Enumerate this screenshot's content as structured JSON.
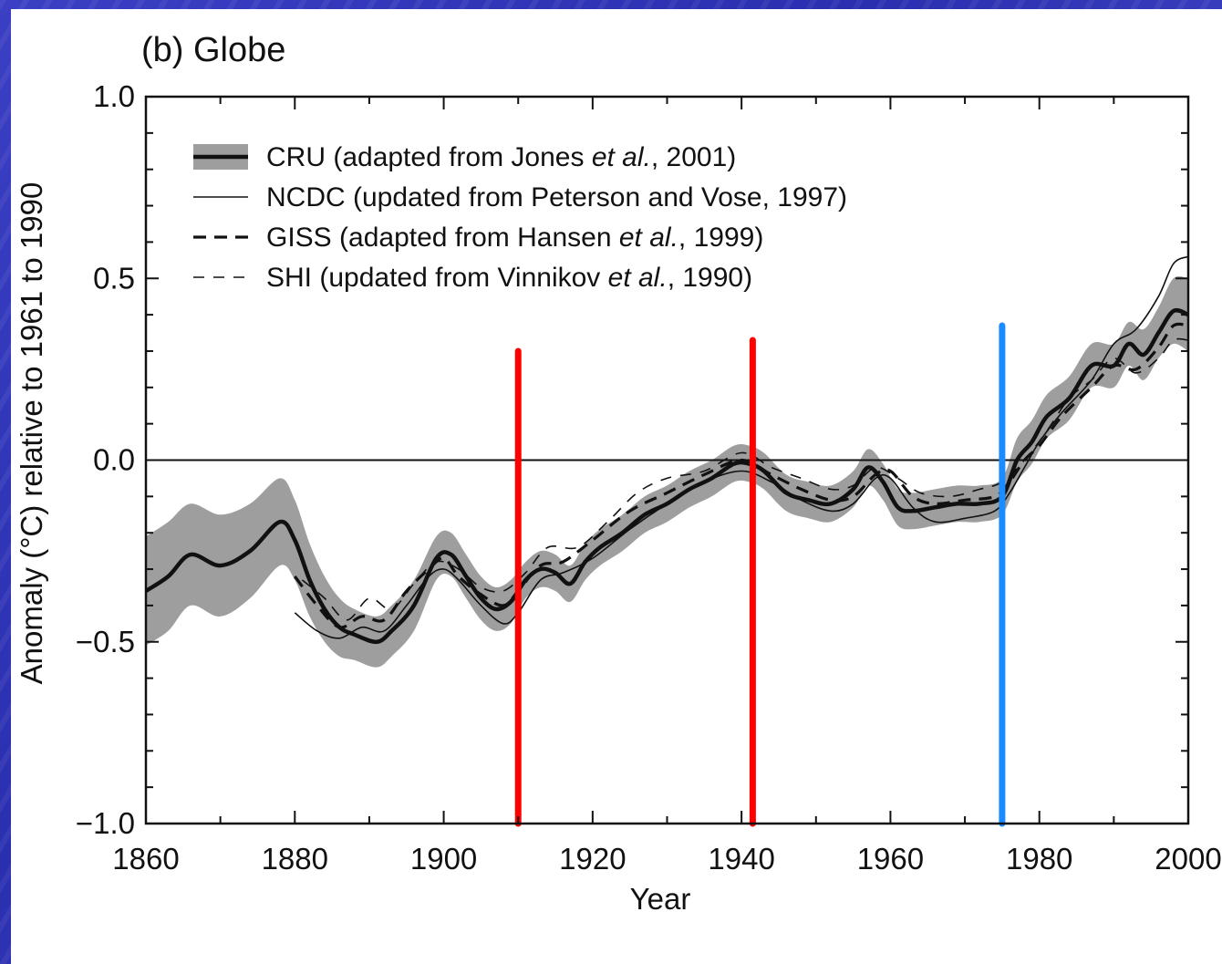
{
  "chart_data": {
    "type": "line",
    "title": "(b)  Globe",
    "xlabel": "Year",
    "ylabel": "Anomaly (°C) relative to 1961 to 1990",
    "xlim": [
      1860,
      2000
    ],
    "ylim": [
      -1.0,
      1.0
    ],
    "x_ticks": [
      "1860",
      "1880",
      "1900",
      "1920",
      "1940",
      "1960",
      "1980",
      "2000"
    ],
    "y_ticks": [
      "1.0",
      "0.5",
      "0.0",
      "−0.5",
      "−1.0"
    ],
    "reference_line_y": 0.0,
    "legend": [
      {
        "pre": "CRU (adapted from Jones ",
        "ital": "et al.",
        "post": ", 2001)"
      },
      {
        "pre": "NCDC (updated from Peterson and Vose, 1997)",
        "ital": "",
        "post": ""
      },
      {
        "pre": "GISS (adapted from Hansen ",
        "ital": "et al.",
        "post": ", 1999)"
      },
      {
        "pre": "SHI (updated from Vinnikov ",
        "ital": "et al.",
        "post": ", 1990)"
      }
    ],
    "series": [
      {
        "name": "CRU",
        "style": "band",
        "x": [
          1860,
          1863,
          1866,
          1870,
          1874,
          1878,
          1880,
          1882,
          1884,
          1886,
          1888,
          1891,
          1893,
          1896,
          1899,
          1901,
          1903,
          1905,
          1907,
          1909,
          1911,
          1913,
          1915,
          1917,
          1919,
          1921,
          1924,
          1927,
          1930,
          1933,
          1936,
          1939,
          1941,
          1943,
          1946,
          1949,
          1952,
          1955,
          1957,
          1959,
          1961,
          1963,
          1966,
          1969,
          1972,
          1975,
          1977,
          1979,
          1981,
          1984,
          1987,
          1990,
          1992,
          1994,
          1996,
          1998,
          2000
        ],
        "values": [
          -0.36,
          -0.32,
          -0.26,
          -0.29,
          -0.25,
          -0.17,
          -0.22,
          -0.33,
          -0.41,
          -0.46,
          -0.48,
          -0.5,
          -0.47,
          -0.4,
          -0.27,
          -0.26,
          -0.32,
          -0.38,
          -0.41,
          -0.39,
          -0.33,
          -0.3,
          -0.31,
          -0.34,
          -0.28,
          -0.24,
          -0.2,
          -0.15,
          -0.12,
          -0.08,
          -0.05,
          -0.01,
          -0.01,
          -0.03,
          -0.09,
          -0.11,
          -0.12,
          -0.08,
          -0.02,
          -0.06,
          -0.13,
          -0.14,
          -0.13,
          -0.12,
          -0.12,
          -0.1,
          0.0,
          0.05,
          0.12,
          0.17,
          0.26,
          0.26,
          0.32,
          0.29,
          0.35,
          0.41,
          0.4
        ],
        "uncertainty": [
          0.15,
          0.15,
          0.14,
          0.14,
          0.13,
          0.12,
          0.11,
          0.1,
          0.09,
          0.08,
          0.07,
          0.07,
          0.07,
          0.07,
          0.06,
          0.06,
          0.06,
          0.06,
          0.06,
          0.06,
          0.05,
          0.05,
          0.05,
          0.05,
          0.05,
          0.05,
          0.05,
          0.05,
          0.05,
          0.05,
          0.05,
          0.05,
          0.05,
          0.05,
          0.05,
          0.05,
          0.05,
          0.05,
          0.05,
          0.05,
          0.05,
          0.05,
          0.05,
          0.05,
          0.05,
          0.05,
          0.06,
          0.06,
          0.06,
          0.06,
          0.06,
          0.06,
          0.06,
          0.07,
          0.07,
          0.09,
          0.1
        ]
      },
      {
        "name": "NCDC",
        "style": "thin-solid",
        "x": [
          1880,
          1883,
          1886,
          1889,
          1892,
          1895,
          1898,
          1900,
          1902,
          1905,
          1908,
          1910,
          1913,
          1916,
          1920,
          1925,
          1930,
          1935,
          1940,
          1944,
          1948,
          1952,
          1955,
          1958,
          1960,
          1963,
          1966,
          1970,
          1974,
          1976,
          1978,
          1980,
          1983,
          1987,
          1990,
          1993,
          1996,
          1998,
          2000
        ],
        "values": [
          -0.42,
          -0.47,
          -0.49,
          -0.46,
          -0.47,
          -0.4,
          -0.32,
          -0.3,
          -0.33,
          -0.4,
          -0.45,
          -0.42,
          -0.33,
          -0.31,
          -0.27,
          -0.19,
          -0.12,
          -0.06,
          -0.03,
          -0.06,
          -0.11,
          -0.14,
          -0.12,
          -0.05,
          -0.05,
          -0.13,
          -0.17,
          -0.16,
          -0.14,
          -0.09,
          -0.02,
          0.05,
          0.13,
          0.22,
          0.32,
          0.36,
          0.45,
          0.54,
          0.56
        ]
      },
      {
        "name": "GISS",
        "style": "thick-dash",
        "x": [
          1880,
          1883,
          1886,
          1889,
          1892,
          1895,
          1898,
          1900,
          1902,
          1905,
          1908,
          1910,
          1913,
          1916,
          1920,
          1925,
          1930,
          1935,
          1940,
          1944,
          1948,
          1952,
          1955,
          1958,
          1960,
          1963,
          1966,
          1970,
          1974,
          1976,
          1978,
          1980,
          1983,
          1987,
          1990,
          1993,
          1996,
          1998,
          2000
        ],
        "values": [
          -0.32,
          -0.4,
          -0.46,
          -0.43,
          -0.44,
          -0.36,
          -0.3,
          -0.27,
          -0.32,
          -0.37,
          -0.4,
          -0.36,
          -0.29,
          -0.28,
          -0.22,
          -0.14,
          -0.09,
          -0.04,
          0.0,
          -0.04,
          -0.08,
          -0.11,
          -0.1,
          -0.04,
          -0.03,
          -0.1,
          -0.12,
          -0.11,
          -0.1,
          -0.06,
          0.0,
          0.04,
          0.12,
          0.2,
          0.26,
          0.25,
          0.31,
          0.37,
          0.37
        ]
      },
      {
        "name": "SHI",
        "style": "thin-dash",
        "x": [
          1881,
          1884,
          1887,
          1890,
          1893,
          1896,
          1899,
          1902,
          1905,
          1908,
          1911,
          1914,
          1918,
          1922,
          1926,
          1930,
          1935,
          1940,
          1944,
          1948,
          1952,
          1955,
          1958,
          1961,
          1964,
          1968,
          1972,
          1975,
          1978,
          1981,
          1984,
          1987,
          1990,
          1993,
          1996,
          1998,
          2000
        ],
        "values": [
          -0.33,
          -0.38,
          -0.44,
          -0.38,
          -0.41,
          -0.34,
          -0.28,
          -0.3,
          -0.35,
          -0.36,
          -0.31,
          -0.24,
          -0.24,
          -0.17,
          -0.09,
          -0.05,
          -0.03,
          0.02,
          -0.02,
          -0.05,
          -0.08,
          -0.07,
          -0.02,
          -0.05,
          -0.09,
          -0.1,
          -0.08,
          -0.06,
          0.0,
          0.08,
          0.17,
          0.22,
          0.28,
          0.24,
          0.28,
          0.33,
          0.33
        ]
      }
    ],
    "annotations": [
      {
        "type": "vline",
        "x": 1910,
        "y_top": 0.3,
        "color": "#ff0000"
      },
      {
        "type": "vline",
        "x": 1941.5,
        "y_top": 0.33,
        "color": "#ff0000"
      },
      {
        "type": "vline",
        "x": 1975,
        "y_top": 0.37,
        "color": "#1a8cff"
      }
    ],
    "colors": {
      "band": "#9e9e9e",
      "line": "#111111",
      "red": "#ff0000",
      "blue": "#1a8cff"
    }
  }
}
